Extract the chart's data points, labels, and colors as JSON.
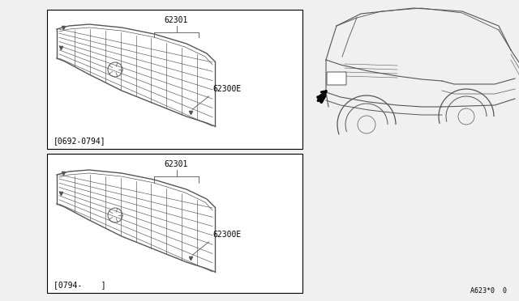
{
  "bg_color": "#f0f0f0",
  "line_color": "#555555",
  "box_color": "#000000",
  "part_label_1": "62301",
  "part_label_2": "62300E",
  "date_label_top": "[0692-0794]",
  "date_label_bottom": "[0794-    ]",
  "bottom_ref": "A623*0  0",
  "label_font_size": 7.0
}
